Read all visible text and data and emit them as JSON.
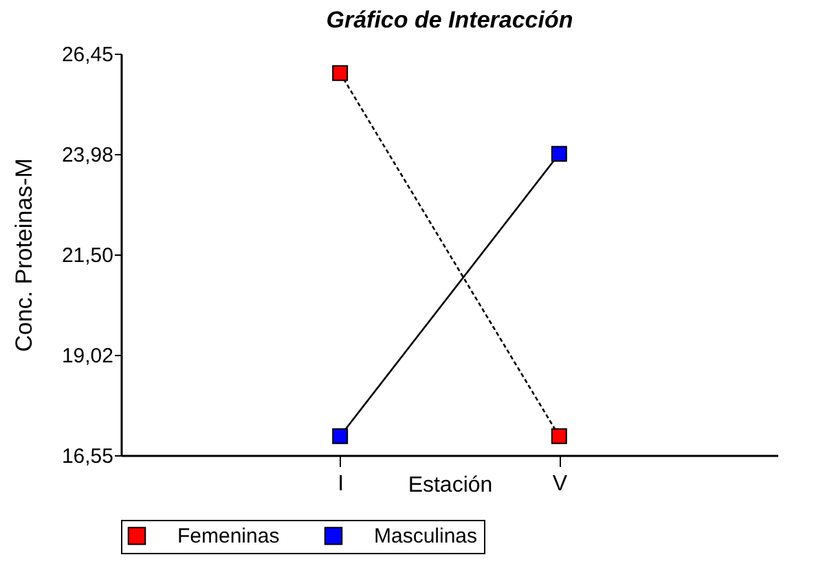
{
  "chart_data": {
    "type": "line",
    "title": "Gráfico de Interacción",
    "xlabel": "Estación",
    "ylabel": "Conc. Proteinas-M",
    "categories": [
      "I",
      "V"
    ],
    "series": [
      {
        "name": "Femeninas",
        "color": "#ff0000",
        "line_style": "dashed",
        "values": [
          25.97,
          17.02
        ]
      },
      {
        "name": "Masculinas",
        "color": "#0000ff",
        "line_style": "solid",
        "values": [
          17.02,
          23.98
        ]
      }
    ],
    "ylim": [
      16.55,
      26.45
    ],
    "yticks": [
      {
        "value": 16.55,
        "label": "16,55"
      },
      {
        "value": 19.02,
        "label": "19,02"
      },
      {
        "value": 21.5,
        "label": "21,50"
      },
      {
        "value": 23.98,
        "label": "23,98"
      },
      {
        "value": 26.45,
        "label": "26,45"
      }
    ],
    "grid": false,
    "legend": "bottom",
    "marker": "square"
  }
}
